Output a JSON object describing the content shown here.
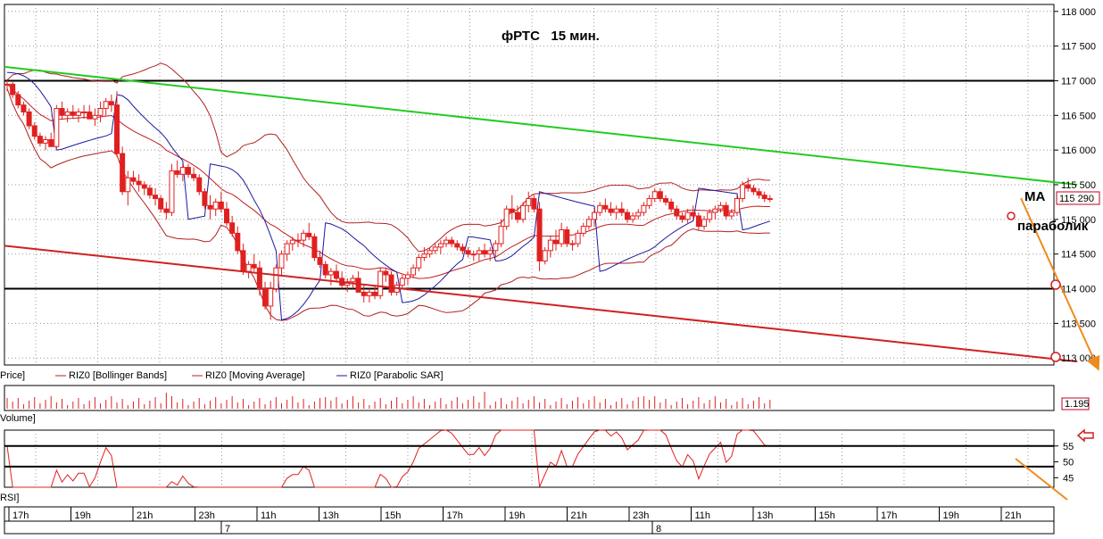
{
  "colors": {
    "candle": "#e02020",
    "band": "#b02020",
    "ma": "#c02020",
    "sar": "#1a1aa0",
    "trend_up": "#22cc22",
    "trend_dn": "#d02020",
    "arrow": "#f08a1c",
    "level": "#000000"
  },
  "chart_data": {
    "type": "candlestick",
    "title": "фРТС   15 мин.",
    "price_axis": {
      "ylim": [
        112900,
        118100
      ],
      "ticks": [
        118000,
        117500,
        117000,
        116500,
        116000,
        115500,
        115000,
        114500,
        114000,
        113500,
        113000
      ],
      "tick_labels": [
        "118 000",
        "117 500",
        "117 000",
        "116 500",
        "116 000",
        "115 500",
        "115 000",
        "114 500",
        "114 000",
        "113 500",
        "113 000"
      ]
    },
    "last_price_label": "115 290",
    "volume_label": "1.195",
    "rsi_axis": {
      "ylim": [
        42,
        60
      ],
      "ticks": [
        55,
        50,
        45
      ],
      "levels": [
        55,
        48.5
      ]
    },
    "time_labels": [
      "17h",
      "19h",
      "21h",
      "23h",
      "11h",
      "13h",
      "15h",
      "17h",
      "19h",
      "21h",
      "23h",
      "11h",
      "13h",
      "15h",
      "17h",
      "19h",
      "21h"
    ],
    "date_labels": [
      "7",
      "8"
    ],
    "panel_labels": {
      "price": "Price]",
      "volume": "Volume]",
      "rsi": "RSI]"
    },
    "legend": [
      "RIZ0 [Bollinger Bands]",
      "RIZ0 [Moving Average]",
      "RIZ0 [Parabolic SAR]"
    ],
    "annotations": {
      "ma": "МА",
      "sar": "параболик"
    },
    "horizontal_levels": [
      117000,
      114000
    ],
    "trend_green": [
      [
        0,
        117200
      ],
      [
        195,
        115500
      ]
    ],
    "trend_red": [
      [
        0,
        114620
      ],
      [
        195,
        112950
      ]
    ],
    "candles": [
      [
        116950,
        117020,
        116850,
        116950
      ],
      [
        116950,
        116980,
        116750,
        116800
      ],
      [
        116800,
        116850,
        116600,
        116650
      ],
      [
        116650,
        116700,
        116500,
        116550
      ],
      [
        116550,
        116600,
        116300,
        116350
      ],
      [
        116350,
        116400,
        116150,
        116200
      ],
      [
        116200,
        116250,
        116050,
        116100
      ],
      [
        116100,
        116200,
        116000,
        116150
      ],
      [
        116150,
        116250,
        116050,
        116050
      ],
      [
        116050,
        116650,
        116000,
        116600
      ],
      [
        116600,
        116700,
        116450,
        116500
      ],
      [
        116500,
        116600,
        116400,
        116550
      ],
      [
        116550,
        116650,
        116450,
        116500
      ],
      [
        116500,
        116600,
        116400,
        116550
      ],
      [
        116550,
        116650,
        116450,
        116550
      ],
      [
        116550,
        116650,
        116450,
        116450
      ],
      [
        116450,
        116600,
        116350,
        116500
      ],
      [
        116500,
        116700,
        116400,
        116600
      ],
      [
        116600,
        116750,
        116500,
        116700
      ],
      [
        116700,
        116800,
        116550,
        116650
      ],
      [
        116650,
        116850,
        115900,
        115950
      ],
      [
        115950,
        116050,
        115350,
        115400
      ],
      [
        115400,
        115700,
        115200,
        115600
      ],
      [
        115600,
        115700,
        115500,
        115550
      ],
      [
        115550,
        115650,
        115400,
        115500
      ],
      [
        115500,
        115550,
        115350,
        115450
      ],
      [
        115450,
        115500,
        115300,
        115350
      ],
      [
        115350,
        115450,
        115200,
        115300
      ],
      [
        115300,
        115350,
        115100,
        115150
      ],
      [
        115150,
        115250,
        115000,
        115100
      ],
      [
        115100,
        115800,
        115050,
        115700
      ],
      [
        115700,
        115850,
        115600,
        115650
      ],
      [
        115650,
        115800,
        115550,
        115750
      ],
      [
        115750,
        115800,
        115600,
        115650
      ],
      [
        115650,
        115750,
        115550,
        115600
      ],
      [
        115600,
        115650,
        115350,
        115400
      ],
      [
        115400,
        115450,
        115150,
        115200
      ],
      [
        115200,
        115350,
        115000,
        115150
      ],
      [
        115150,
        115300,
        115050,
        115250
      ],
      [
        115250,
        115400,
        115100,
        115150
      ],
      [
        115150,
        115250,
        114900,
        114950
      ],
      [
        114950,
        115050,
        114750,
        114800
      ],
      [
        114800,
        114900,
        114500,
        114550
      ],
      [
        114550,
        114650,
        114200,
        114250
      ],
      [
        114250,
        114400,
        114150,
        114350
      ],
      [
        114350,
        114500,
        114250,
        114300
      ],
      [
        114300,
        114400,
        113900,
        114000
      ],
      [
        114000,
        114100,
        113700,
        113750
      ],
      [
        113750,
        114100,
        113550,
        114000
      ],
      [
        114000,
        114350,
        113950,
        114300
      ],
      [
        114300,
        114550,
        114200,
        114500
      ],
      [
        114500,
        114700,
        114400,
        114650
      ],
      [
        114650,
        114750,
        114550,
        114700
      ],
      [
        114700,
        114800,
        114600,
        114700
      ],
      [
        114700,
        114850,
        114600,
        114800
      ],
      [
        114800,
        114950,
        114700,
        114750
      ],
      [
        114750,
        114800,
        114400,
        114450
      ],
      [
        114450,
        114550,
        114300,
        114350
      ],
      [
        114350,
        114400,
        114150,
        114200
      ],
      [
        114200,
        114300,
        114050,
        114250
      ],
      [
        114250,
        114350,
        114100,
        114150
      ],
      [
        114150,
        114250,
        114000,
        114050
      ],
      [
        114050,
        114150,
        113950,
        114100
      ],
      [
        114100,
        114200,
        114000,
        114150
      ],
      [
        114150,
        114250,
        113950,
        113950
      ],
      [
        113950,
        114050,
        113800,
        113900
      ],
      [
        113900,
        114000,
        113800,
        113950
      ],
      [
        113950,
        114050,
        113850,
        113900
      ],
      [
        113900,
        114300,
        113850,
        114250
      ],
      [
        114250,
        114300,
        114100,
        114200
      ],
      [
        114200,
        114250,
        113900,
        113950
      ],
      [
        113950,
        114100,
        113900,
        114050
      ],
      [
        114050,
        114200,
        114000,
        114150
      ],
      [
        114150,
        114250,
        114050,
        114200
      ],
      [
        114200,
        114350,
        114150,
        114300
      ],
      [
        114300,
        114500,
        114250,
        114450
      ],
      [
        114450,
        114600,
        114400,
        114500
      ],
      [
        114500,
        114600,
        114450,
        114550
      ],
      [
        114550,
        114650,
        114500,
        114600
      ],
      [
        114600,
        114700,
        114500,
        114650
      ],
      [
        114650,
        114750,
        114600,
        114700
      ],
      [
        114700,
        114750,
        114600,
        114650
      ],
      [
        114650,
        114700,
        114550,
        114600
      ],
      [
        114600,
        114650,
        114500,
        114550
      ],
      [
        114550,
        114600,
        114450,
        114500
      ],
      [
        114500,
        114550,
        114400,
        114500
      ],
      [
        114500,
        114600,
        114400,
        114550
      ],
      [
        114550,
        114650,
        114450,
        114500
      ],
      [
        114500,
        114600,
        114400,
        114550
      ],
      [
        114550,
        114700,
        114450,
        114650
      ],
      [
        114650,
        115000,
        114600,
        114900
      ],
      [
        114900,
        115200,
        114850,
        115150
      ],
      [
        115150,
        115350,
        115000,
        115100
      ],
      [
        115100,
        115200,
        114950,
        115000
      ],
      [
        115000,
        115250,
        114950,
        115200
      ],
      [
        115200,
        115400,
        115100,
        115300
      ],
      [
        115300,
        115350,
        115100,
        115150
      ],
      [
        115150,
        115250,
        114250,
        114400
      ],
      [
        114400,
        114600,
        114350,
        114550
      ],
      [
        114550,
        114750,
        114450,
        114700
      ],
      [
        114700,
        114850,
        114550,
        114650
      ],
      [
        114650,
        114950,
        114600,
        114850
      ],
      [
        114850,
        114900,
        114600,
        114650
      ],
      [
        114650,
        114700,
        114550,
        114650
      ],
      [
        114650,
        114850,
        114600,
        114800
      ],
      [
        114800,
        114950,
        114750,
        114900
      ],
      [
        114900,
        115050,
        114850,
        115000
      ],
      [
        115000,
        115150,
        114900,
        115100
      ],
      [
        115100,
        115250,
        115050,
        115200
      ],
      [
        115200,
        115300,
        115100,
        115150
      ],
      [
        115150,
        115250,
        115050,
        115100
      ],
      [
        115100,
        115200,
        115000,
        115150
      ],
      [
        115150,
        115250,
        115050,
        115100
      ],
      [
        115100,
        115150,
        114950,
        115000
      ],
      [
        115000,
        115100,
        114950,
        115050
      ],
      [
        115050,
        115150,
        115000,
        115100
      ],
      [
        115100,
        115250,
        115050,
        115200
      ],
      [
        115200,
        115350,
        115150,
        115300
      ],
      [
        115300,
        115450,
        115250,
        115400
      ],
      [
        115400,
        115450,
        115250,
        115300
      ],
      [
        115300,
        115350,
        115200,
        115250
      ],
      [
        115250,
        115300,
        115100,
        115150
      ],
      [
        115150,
        115200,
        115000,
        115050
      ],
      [
        115050,
        115100,
        114950,
        115000
      ],
      [
        115000,
        115150,
        114950,
        115100
      ],
      [
        115100,
        115200,
        115000,
        115050
      ],
      [
        115050,
        115100,
        114850,
        114900
      ],
      [
        114900,
        115050,
        114850,
        115000
      ],
      [
        115000,
        115150,
        114950,
        115100
      ],
      [
        115100,
        115200,
        115000,
        115150
      ],
      [
        115150,
        115250,
        115100,
        115200
      ],
      [
        115200,
        115250,
        115000,
        115050
      ],
      [
        115050,
        115150,
        115000,
        115100
      ],
      [
        115100,
        115350,
        115050,
        115300
      ],
      [
        115300,
        115550,
        115250,
        115500
      ],
      [
        115500,
        115600,
        115400,
        115450
      ],
      [
        115450,
        115500,
        115350,
        115400
      ],
      [
        115400,
        115450,
        115300,
        115350
      ],
      [
        115350,
        115400,
        115250,
        115300
      ],
      [
        115300,
        115350,
        115250,
        115290
      ]
    ]
  }
}
